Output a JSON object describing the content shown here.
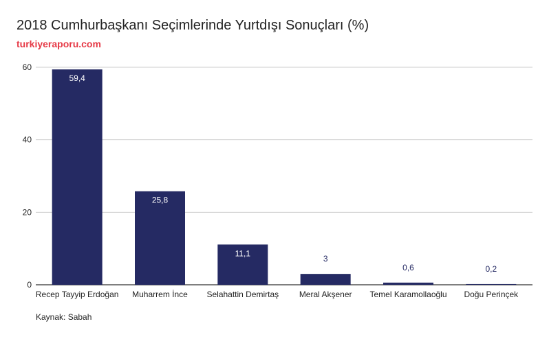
{
  "chart_data": {
    "type": "bar",
    "title": "2018 Cumhurbaşkanı Seçimlerinde Yurtdışı Sonuçları (%)",
    "subtitle": "turkiyeraporu.com",
    "source": "Kaynak: Sabah",
    "categories": [
      "Recep Tayyip Erdoğan",
      "Muharrem İnce",
      "Selahattin Demirtaş",
      "Meral Akşener",
      "Temel Karamollaoğlu",
      "Doğu Perinçek"
    ],
    "values": [
      59.4,
      25.8,
      11.1,
      3,
      0.6,
      0.2
    ],
    "data_labels": [
      "59,4",
      "25,8",
      "11,1",
      "3",
      "0,6",
      "0,2"
    ],
    "yticks": [
      0,
      20,
      40,
      60
    ],
    "ylim": [
      0,
      60
    ],
    "grid": true,
    "legend": "none"
  },
  "colors": {
    "bar": "#252a63",
    "label_inside": "#ffffff",
    "label_outside": "#252a63",
    "subtitle": "#e63946",
    "grid": "#cccccc",
    "axis": "#333333",
    "text": "#222222"
  }
}
